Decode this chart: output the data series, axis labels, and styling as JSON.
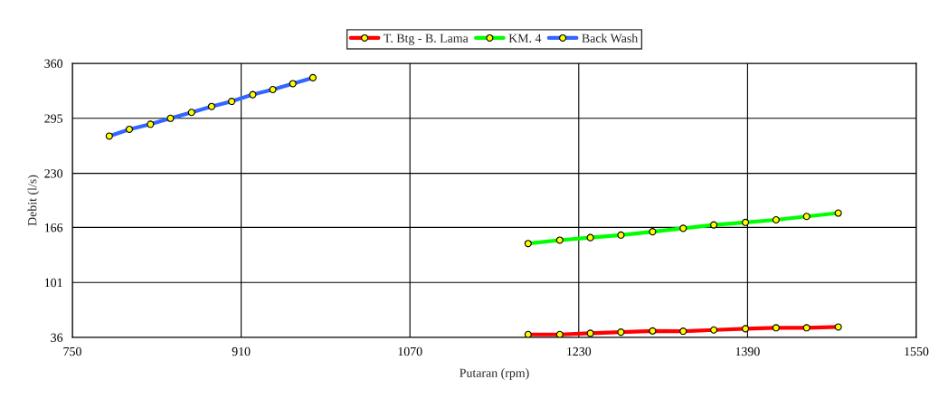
{
  "chart_data": {
    "type": "line",
    "xlabel": "Putaran (rpm)",
    "ylabel": "Debit (l/s)",
    "xlim": [
      750,
      1550
    ],
    "xticks": [
      750,
      910,
      1070,
      1230,
      1390,
      1550
    ],
    "ylim": [
      36,
      360
    ],
    "yticks": [
      36,
      101,
      166,
      230,
      295,
      360
    ],
    "grid": true,
    "legend": "top",
    "marker": "circle",
    "line_style": "solid",
    "series": [
      {
        "name": "T. Btg - B. Lama",
        "color": "#ff0000",
        "x": [
          1182,
          1212,
          1241,
          1270,
          1300,
          1329,
          1358,
          1388,
          1417,
          1446,
          1476
        ],
        "values": [
          39.5,
          39.5,
          41,
          42.3,
          43.7,
          43.4,
          44.8,
          46.3,
          47.4,
          47.4,
          48.4
        ]
      },
      {
        "name": "KM. 4",
        "color": "#00ff00",
        "x": [
          1182,
          1212,
          1241,
          1270,
          1300,
          1329,
          1358,
          1388,
          1417,
          1446,
          1476
        ],
        "values": [
          147,
          151,
          154,
          157,
          161,
          165,
          169,
          172,
          175,
          179,
          183
        ]
      },
      {
        "name": "Back Wash",
        "color": "#3366ff",
        "x": [
          785,
          804,
          824,
          843,
          863,
          882,
          901,
          921,
          940,
          959,
          978
        ],
        "values": [
          274,
          282,
          288,
          295,
          302,
          309,
          315,
          323,
          329,
          336,
          343
        ]
      }
    ]
  }
}
